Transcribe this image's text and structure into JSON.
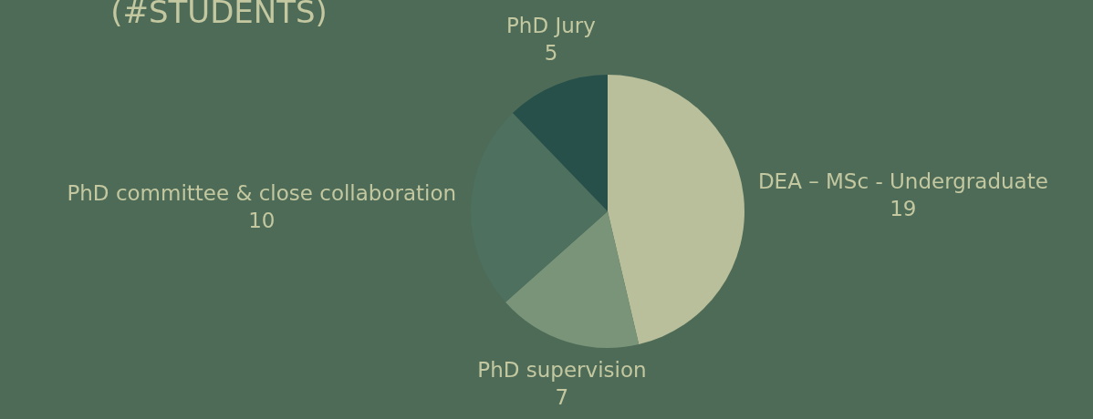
{
  "chart_data": {
    "type": "pie",
    "title": "(#STUDENTS)",
    "categories": [
      "DEA – MSc - Undergraduate",
      "PhD supervision",
      "PhD committee & close collaboration",
      "PhD Jury"
    ],
    "values": [
      19,
      7,
      10,
      5
    ],
    "colors": [
      "#b8bf9a",
      "#7a9479",
      "#4e705f",
      "#27504a"
    ],
    "data_labels": true
  }
}
